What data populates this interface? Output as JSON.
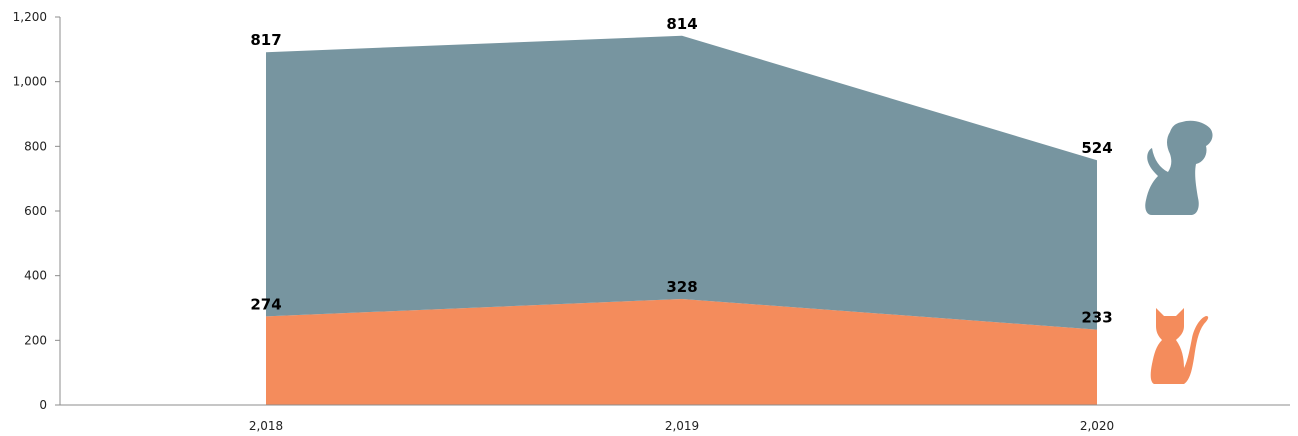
{
  "chart_data": {
    "type": "area",
    "stacked": true,
    "x": [
      "2,018",
      "2,019",
      "2,020"
    ],
    "ylim": [
      0,
      1200
    ],
    "yticks": [
      "0",
      "200",
      "400",
      "600",
      "800",
      "1,000",
      "1,200"
    ],
    "ytick_values": [
      0,
      200,
      400,
      600,
      800,
      1000,
      1200
    ],
    "grid": false,
    "legend": "right (icons)",
    "series": [
      {
        "values": [
          274,
          328,
          233
        ],
        "labels": [
          "274",
          "328",
          "233"
        ],
        "color": "#F48C5C",
        "icon": "cat-icon"
      },
      {
        "values": [
          817,
          814,
          524
        ],
        "labels": [
          "817",
          "814",
          "524"
        ],
        "color": "#7795A0",
        "icon": "dog-icon"
      }
    ]
  }
}
